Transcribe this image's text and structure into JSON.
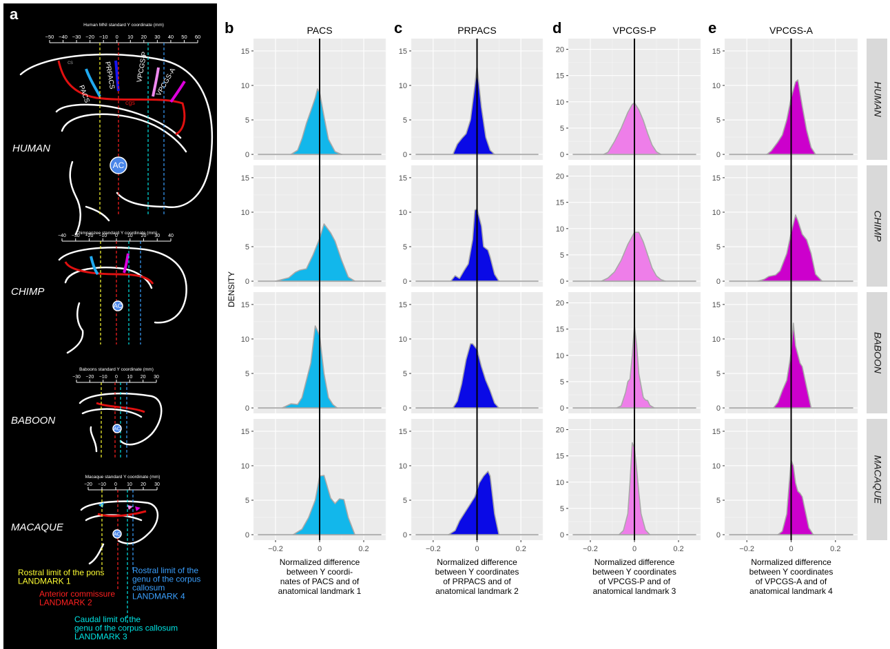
{
  "panel_letters": [
    "a",
    "b",
    "c",
    "d",
    "e"
  ],
  "panel_a": {
    "axes": [
      {
        "title": "Human MNI standard Y coordinate (mm)",
        "ticks": [
          "−50",
          "−40",
          "−30",
          "−20",
          "−10",
          "0",
          "10",
          "20",
          "30",
          "40",
          "50",
          "60"
        ]
      },
      {
        "title": "Chimpanzee standard Y coordinate (mm)",
        "ticks": [
          "−40",
          "−30",
          "−20",
          "−10",
          "0",
          "10",
          "20",
          "30",
          "40"
        ]
      },
      {
        "title": "Baboons standard Y coordinate (mm)",
        "ticks": [
          "−30",
          "−20",
          "−10",
          "0",
          "10",
          "20",
          "30"
        ]
      },
      {
        "title": "Macaque standard Y coordinate (mm)",
        "ticks": [
          "−20",
          "−10",
          "0",
          "10",
          "20",
          "30"
        ]
      }
    ],
    "species": [
      "HUMAN",
      "CHIMP",
      "BABOON",
      "MACAQUE"
    ],
    "sulcus_labels": [
      "PACS",
      "PRPACS",
      "VPCGS-P",
      "VPCGS-A",
      "cgs",
      "cs"
    ],
    "ac_label": "AC",
    "legend": [
      {
        "lines": [
          "Rostral limit of the pons",
          "LANDMARK 1"
        ],
        "color": "#ffff33"
      },
      {
        "lines": [
          "Anterior commissure",
          "LANDMARK 2"
        ],
        "color": "#ff2020"
      },
      {
        "lines": [
          "Caudal limit of the",
          "genu of the corpus callosum",
          "LANDMARK 3"
        ],
        "color": "#00e5e5"
      },
      {
        "lines": [
          "Rostral limit of the",
          "genu of the corpus",
          "callosum",
          "LANDMARK 4"
        ],
        "color": "#3aa0ff"
      }
    ]
  },
  "chart_data": {
    "type": "area",
    "ylabel": "DENSITY",
    "xlim": [
      -0.3,
      0.3
    ],
    "x_ticks": [
      -0.2,
      0,
      0.2
    ],
    "x_tick_labels": [
      "−0.2",
      "0",
      "0.2"
    ],
    "row_labels": [
      "HUMAN",
      "CHIMP",
      "BABOON",
      "MACAQUE"
    ],
    "columns": [
      {
        "title": "PACS",
        "color": "#12b7eb",
        "ylim": [
          0,
          16
        ],
        "y_ticks": [
          0,
          5,
          10,
          15
        ],
        "xlabel": [
          "Normalized difference",
          "between Y coordi-",
          "nates of PACS and of",
          "anatomical landmark 1"
        ],
        "rows": [
          {
            "x": [
              -0.13,
              -0.1,
              -0.08,
              -0.06,
              -0.04,
              -0.02,
              -0.01,
              0.0,
              0.02,
              0.04,
              0.07,
              0.1
            ],
            "y": [
              0,
              0.6,
              2.3,
              4.5,
              6.3,
              8.2,
              9.5,
              9.0,
              5.5,
              2.2,
              0.4,
              0
            ]
          },
          {
            "x": [
              -0.2,
              -0.14,
              -0.11,
              -0.09,
              -0.06,
              -0.03,
              0.0,
              0.02,
              0.05,
              0.07,
              0.1,
              0.13,
              0.16
            ],
            "y": [
              0,
              0.5,
              1.3,
              1.6,
              1.8,
              3.8,
              6.2,
              8.3,
              7.0,
              5.8,
              3.0,
              0.6,
              0
            ]
          },
          {
            "x": [
              -0.17,
              -0.15,
              -0.13,
              -0.1,
              -0.08,
              -0.06,
              -0.04,
              -0.02,
              0.0,
              0.02,
              0.04,
              0.06,
              0.08
            ],
            "y": [
              0,
              0.3,
              0.6,
              0.5,
              1.5,
              4.0,
              6.5,
              11.9,
              10.5,
              5.0,
              1.5,
              0.5,
              0
            ]
          },
          {
            "x": [
              -0.12,
              -0.08,
              -0.05,
              -0.02,
              0.0,
              0.02,
              0.05,
              0.07,
              0.09,
              0.11,
              0.13,
              0.16
            ],
            "y": [
              0,
              0.8,
              2.5,
              5.0,
              8.5,
              8.6,
              5.3,
              4.5,
              5.2,
              5.1,
              2.5,
              0
            ]
          }
        ]
      },
      {
        "title": "PRPACS",
        "color": "#0a0ae6",
        "ylim": [
          0,
          16
        ],
        "y_ticks": [
          0,
          5,
          10,
          15
        ],
        "xlabel": [
          "Normalized difference",
          "between Y coordinates",
          "of PRPACS and of",
          "anatomical landmark 2"
        ],
        "rows": [
          {
            "x": [
              -0.11,
              -0.09,
              -0.07,
              -0.05,
              -0.03,
              -0.01,
              0.0,
              0.02,
              0.04,
              0.06,
              0.08
            ],
            "y": [
              0,
              1.5,
              2.3,
              3.0,
              5.0,
              10.0,
              12.8,
              6.8,
              2.5,
              0.6,
              0
            ]
          },
          {
            "x": [
              -0.12,
              -0.1,
              -0.08,
              -0.06,
              -0.04,
              -0.02,
              -0.01,
              0.0,
              0.02,
              0.03,
              0.05,
              0.06,
              0.08,
              0.1
            ],
            "y": [
              0,
              0.8,
              0.4,
              1.5,
              2.5,
              6.0,
              10.3,
              10.5,
              8.0,
              5.0,
              4.5,
              3.5,
              1.0,
              0
            ]
          },
          {
            "x": [
              -0.11,
              -0.09,
              -0.07,
              -0.05,
              -0.03,
              -0.02,
              0.0,
              0.02,
              0.04,
              0.06,
              0.08,
              0.1
            ],
            "y": [
              0,
              1.0,
              3.5,
              7.0,
              9.3,
              9.3,
              8.5,
              6.0,
              4.0,
              2.5,
              0.7,
              0
            ]
          },
          {
            "x": [
              -0.13,
              -0.1,
              -0.08,
              -0.05,
              -0.03,
              -0.01,
              0.01,
              0.03,
              0.05,
              0.06,
              0.08,
              0.1
            ],
            "y": [
              0,
              0.6,
              2.0,
              3.5,
              4.5,
              5.5,
              7.5,
              8.5,
              9.2,
              8.5,
              3.0,
              0
            ]
          }
        ]
      },
      {
        "title": "VPCGS-P",
        "color": "#ee7ee9",
        "ylim": [
          0,
          21
        ],
        "y_ticks": [
          0,
          5,
          10,
          15,
          20
        ],
        "xlabel": [
          "Normalized difference",
          "between Y coordinates",
          "of VPCGS-P and of",
          "anatomical landmark 3"
        ],
        "rows": [
          {
            "x": [
              -0.14,
              -0.12,
              -0.09,
              -0.06,
              -0.03,
              -0.01,
              0.0,
              0.02,
              0.04,
              0.06,
              0.08,
              0.1,
              0.12
            ],
            "y": [
              0,
              0.4,
              2.5,
              5.0,
              8.0,
              9.5,
              9.8,
              8.5,
              6.5,
              4.0,
              1.8,
              0.5,
              0
            ]
          },
          {
            "x": [
              -0.15,
              -0.12,
              -0.09,
              -0.06,
              -0.03,
              0.0,
              0.02,
              0.04,
              0.06,
              0.08,
              0.1,
              0.12,
              0.14
            ],
            "y": [
              0,
              0.6,
              1.8,
              4.0,
              7.0,
              9.3,
              9.3,
              7.5,
              5.0,
              2.5,
              1.0,
              0.3,
              0
            ]
          },
          {
            "x": [
              -0.08,
              -0.06,
              -0.04,
              -0.03,
              -0.02,
              -0.01,
              0.0,
              0.01,
              0.02,
              0.04,
              0.05,
              0.06,
              0.07,
              0.09
            ],
            "y": [
              0,
              0.4,
              3.0,
              5.0,
              5.5,
              10.0,
              15.7,
              12.0,
              6.5,
              2.0,
              1.5,
              1.4,
              0.5,
              0
            ]
          },
          {
            "x": [
              -0.07,
              -0.05,
              -0.03,
              -0.02,
              -0.01,
              0.0,
              0.01,
              0.02,
              0.03,
              0.05,
              0.07
            ],
            "y": [
              0,
              0.8,
              4.0,
              10.0,
              17.5,
              16.5,
              12.5,
              8.0,
              4.0,
              0.9,
              0
            ]
          }
        ]
      },
      {
        "title": "VPCGS-A",
        "color": "#cc00cc",
        "ylim": [
          0,
          16
        ],
        "y_ticks": [
          0,
          5,
          10,
          15
        ],
        "xlabel": [
          "Normalized difference",
          "between Y coordinates",
          "of VPCGS-A and of",
          "anatomical landmark 4"
        ],
        "rows": [
          {
            "x": [
              -0.11,
              -0.09,
              -0.06,
              -0.04,
              -0.02,
              0.0,
              0.02,
              0.03,
              0.05,
              0.07,
              0.09,
              0.11
            ],
            "y": [
              0,
              0.5,
              1.8,
              2.8,
              5.0,
              8.2,
              10.5,
              10.8,
              7.0,
              3.5,
              1.0,
              0
            ]
          },
          {
            "x": [
              -0.15,
              -0.12,
              -0.1,
              -0.07,
              -0.05,
              -0.02,
              0.0,
              0.02,
              0.03,
              0.05,
              0.07,
              0.09,
              0.11,
              0.14
            ],
            "y": [
              0,
              0.3,
              0.7,
              0.9,
              1.5,
              4.0,
              7.0,
              9.6,
              8.8,
              6.8,
              6.0,
              4.0,
              1.0,
              0
            ]
          },
          {
            "x": [
              -0.08,
              -0.06,
              -0.04,
              -0.02,
              0.0,
              0.01,
              0.02,
              0.04,
              0.05,
              0.07,
              0.09
            ],
            "y": [
              0,
              0.8,
              2.5,
              4.0,
              8.0,
              12.3,
              9.0,
              6.5,
              6.0,
              3.0,
              0
            ]
          },
          {
            "x": [
              -0.06,
              -0.04,
              -0.02,
              -0.01,
              0.0,
              0.01,
              0.02,
              0.03,
              0.04,
              0.05,
              0.06,
              0.08,
              0.1
            ],
            "y": [
              0,
              0.5,
              3.0,
              7.0,
              10.8,
              10.0,
              7.5,
              6.3,
              6.0,
              5.5,
              4.0,
              1.0,
              0
            ]
          }
        ]
      }
    ]
  }
}
